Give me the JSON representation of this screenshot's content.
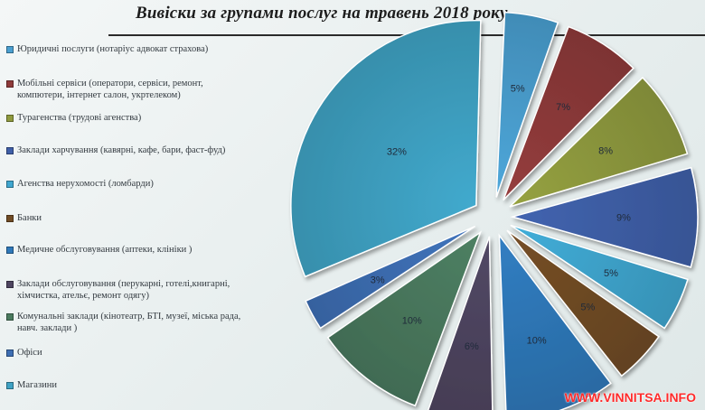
{
  "chart_data": {
    "type": "pie",
    "title": "Вивіски за групами послуг на травень 2018 року.",
    "legend_position": "left",
    "slices": [
      {
        "label": "Юридичні послуги (нотаріус адвокат страхова)",
        "value": 5,
        "display": "5%",
        "color": "#4a9fd0"
      },
      {
        "label": "Мобільні сервіси (оператори, сервіси, ремонт, компютери, інтернет салон, укртелеком)",
        "value": 7,
        "display": "7%",
        "color": "#8e3a3a"
      },
      {
        "label": "Турагенства (трудові агенства)",
        "value": 8,
        "display": "8%",
        "color": "#8f9a3e"
      },
      {
        "label": "Заклади харчування (кавярні, кафе, бари, фаст-фуд)",
        "value": 9,
        "display": "9%",
        "color": "#3f5fa8"
      },
      {
        "label": "Агенства нерухомості (ломбарди)",
        "value": 5,
        "display": "5%",
        "color": "#3fa6cf"
      },
      {
        "label": "Банки",
        "value": 5,
        "display": "5%",
        "color": "#704b24"
      },
      {
        "label": "Медичне обслуговування (аптеки, клініки )",
        "value": 10,
        "display": "10%",
        "color": "#2f78b9"
      },
      {
        "label": "Заклади обслуговування (перукарні, готелі,книгарні, хімчистка, ательє, ремонт одягу)",
        "value": 6,
        "display": "6%",
        "color": "#4e4560"
      },
      {
        "label": "Комунальні заклади (кінотеатр, БТІ, музеї, міська рада, навч. заклади )",
        "value": 10,
        "display": "10%",
        "color": "#4a7a5e"
      },
      {
        "label": "Офіси",
        "value": 3,
        "display": "3%",
        "color": "#3d6eb3"
      },
      {
        "label": "Магазини",
        "value": 32,
        "display": "32%",
        "color": "#3fa2c4"
      }
    ]
  },
  "watermark": "WWW.VINNITSA.INFO"
}
